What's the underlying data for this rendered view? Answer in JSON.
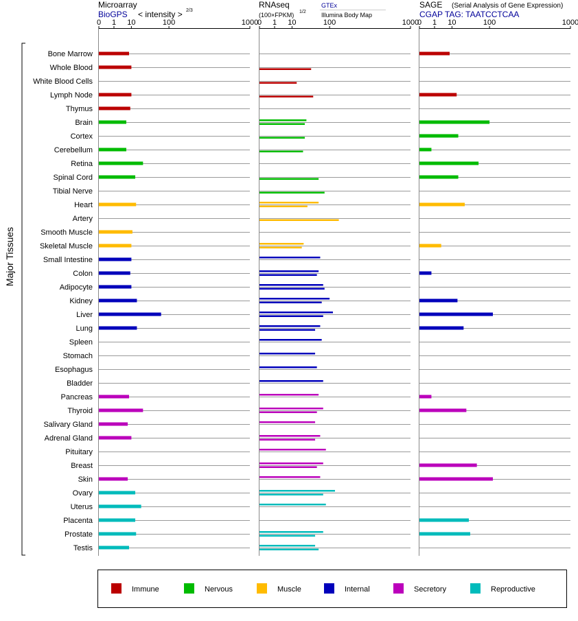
{
  "colors": {
    "Immune": "#bb0000",
    "Nervous": "#00bb00",
    "Muscle": "#ffbb00",
    "Internal": "#0000bb",
    "Secretory": "#bb00bb",
    "Reproductive": "#00bbbb"
  },
  "y_axis_title": "Major Tissues",
  "panels": {
    "microarray": {
      "title": "Microarray",
      "source": "BioGPS",
      "metric_prefix": "< intensity >",
      "metric_exponent": "2/3"
    },
    "rnaseq": {
      "title": "RNAseq",
      "unit_prefix": "(100×FPKM)",
      "unit_exponent": "1/2",
      "source1": "GTEx",
      "source2": "Illumina Body Map"
    },
    "sage": {
      "title": "SAGE",
      "subtitle": "(Serial Analysis of Gene Expression)",
      "tag": "CGAP TAG: TAATCCTCAA"
    }
  },
  "chart_data": {
    "type": "bar",
    "axis": {
      "scale": "power",
      "ticks": [
        "0",
        "1",
        "10",
        "100",
        "1000"
      ],
      "xlim": [
        0,
        1000
      ]
    },
    "legend": {
      "placement": "bottom",
      "entries": [
        "Immune",
        "Nervous",
        "Muscle",
        "Internal",
        "Secretory",
        "Reproductive"
      ]
    },
    "tissues": [
      {
        "name": "Bone Marrow",
        "system": "Immune",
        "microarray": 8,
        "rnaseq_gtex": null,
        "rnaseq_ibm": null,
        "sage": 8
      },
      {
        "name": "Whole Blood",
        "system": "Immune",
        "microarray": 10,
        "rnaseq_gtex": null,
        "rnaseq_ibm": 40,
        "sage": null
      },
      {
        "name": "White Blood Cells",
        "system": "Immune",
        "microarray": null,
        "rnaseq_gtex": null,
        "rnaseq_ibm": 15,
        "sage": null
      },
      {
        "name": "Lymph Node",
        "system": "Immune",
        "microarray": 10,
        "rnaseq_gtex": null,
        "rnaseq_ibm": 45,
        "sage": 15
      },
      {
        "name": "Thymus",
        "system": "Immune",
        "microarray": 9,
        "rnaseq_gtex": null,
        "rnaseq_ibm": null,
        "sage": null
      },
      {
        "name": "Brain",
        "system": "Nervous",
        "microarray": 6,
        "rnaseq_gtex": 30,
        "rnaseq_ibm": 27,
        "sage": 100
      },
      {
        "name": "Cortex",
        "system": "Nervous",
        "microarray": null,
        "rnaseq_gtex": null,
        "rnaseq_ibm": 27,
        "sage": 17
      },
      {
        "name": "Cerebellum",
        "system": "Nervous",
        "microarray": 6,
        "rnaseq_gtex": null,
        "rnaseq_ibm": 24,
        "sage": 0.5
      },
      {
        "name": "Retina",
        "system": "Nervous",
        "microarray": 25,
        "rnaseq_gtex": null,
        "rnaseq_ibm": null,
        "sage": 60
      },
      {
        "name": "Spinal Cord",
        "system": "Nervous",
        "microarray": 14,
        "rnaseq_gtex": null,
        "rnaseq_ibm": 60,
        "sage": 17
      },
      {
        "name": "Tibial Nerve",
        "system": "Nervous",
        "microarray": null,
        "rnaseq_gtex": null,
        "rnaseq_ibm": 80,
        "sage": null
      },
      {
        "name": "Heart",
        "system": "Muscle",
        "microarray": 15,
        "rnaseq_gtex": 60,
        "rnaseq_ibm": 32,
        "sage": 27
      },
      {
        "name": "Artery",
        "system": "Muscle",
        "microarray": null,
        "rnaseq_gtex": null,
        "rnaseq_ibm": 145,
        "sage": null
      },
      {
        "name": "Smooth Muscle",
        "system": "Muscle",
        "microarray": 11,
        "rnaseq_gtex": null,
        "rnaseq_ibm": null,
        "sage": null
      },
      {
        "name": "Skeletal Muscle",
        "system": "Muscle",
        "microarray": 10,
        "rnaseq_gtex": 25,
        "rnaseq_ibm": 22,
        "sage": 3
      },
      {
        "name": "Small Intestine",
        "system": "Internal",
        "microarray": 10,
        "rnaseq_gtex": 65,
        "rnaseq_ibm": null,
        "sage": null
      },
      {
        "name": "Colon",
        "system": "Internal",
        "microarray": 9,
        "rnaseq_gtex": 60,
        "rnaseq_ibm": 55,
        "sage": 0.5
      },
      {
        "name": "Adipocyte",
        "system": "Internal",
        "microarray": 10,
        "rnaseq_gtex": 75,
        "rnaseq_ibm": 80,
        "sage": null
      },
      {
        "name": "Kidney",
        "system": "Internal",
        "microarray": 16,
        "rnaseq_gtex": 100,
        "rnaseq_ibm": 70,
        "sage": 16
      },
      {
        "name": "Liver",
        "system": "Internal",
        "microarray": 70,
        "rnaseq_gtex": 115,
        "rnaseq_ibm": 75,
        "sage": 115
      },
      {
        "name": "Lung",
        "system": "Internal",
        "microarray": 16,
        "rnaseq_gtex": 65,
        "rnaseq_ibm": 50,
        "sage": 25
      },
      {
        "name": "Spleen",
        "system": "Internal",
        "microarray": null,
        "rnaseq_gtex": 70,
        "rnaseq_ibm": null,
        "sage": null
      },
      {
        "name": "Stomach",
        "system": "Internal",
        "microarray": null,
        "rnaseq_gtex": 50,
        "rnaseq_ibm": null,
        "sage": null
      },
      {
        "name": "Esophagus",
        "system": "Internal",
        "microarray": null,
        "rnaseq_gtex": 55,
        "rnaseq_ibm": null,
        "sage": null
      },
      {
        "name": "Bladder",
        "system": "Internal",
        "microarray": null,
        "rnaseq_gtex": 75,
        "rnaseq_ibm": null,
        "sage": null
      },
      {
        "name": "Pancreas",
        "system": "Secretory",
        "microarray": 8,
        "rnaseq_gtex": 60,
        "rnaseq_ibm": null,
        "sage": 0.5
      },
      {
        "name": "Thyroid",
        "system": "Secretory",
        "microarray": 25,
        "rnaseq_gtex": 75,
        "rnaseq_ibm": 55,
        "sage": 30
      },
      {
        "name": "Salivary Gland",
        "system": "Secretory",
        "microarray": 7,
        "rnaseq_gtex": 50,
        "rnaseq_ibm": null,
        "sage": null
      },
      {
        "name": "Adrenal Gland",
        "system": "Secretory",
        "microarray": 10,
        "rnaseq_gtex": 65,
        "rnaseq_ibm": 50,
        "sage": null
      },
      {
        "name": "Pituitary",
        "system": "Secretory",
        "microarray": null,
        "rnaseq_gtex": 85,
        "rnaseq_ibm": null,
        "sage": null
      },
      {
        "name": "Breast",
        "system": "Secretory",
        "microarray": null,
        "rnaseq_gtex": 75,
        "rnaseq_ibm": 55,
        "sage": 55
      },
      {
        "name": "Skin",
        "system": "Secretory",
        "microarray": 7,
        "rnaseq_gtex": 65,
        "rnaseq_ibm": null,
        "sage": 115
      },
      {
        "name": "Ovary",
        "system": "Reproductive",
        "microarray": 14,
        "rnaseq_gtex": 125,
        "rnaseq_ibm": 75,
        "sage": null
      },
      {
        "name": "Uterus",
        "system": "Reproductive",
        "microarray": 22,
        "rnaseq_gtex": 85,
        "rnaseq_ibm": null,
        "sage": null
      },
      {
        "name": "Placenta",
        "system": "Reproductive",
        "microarray": 14,
        "rnaseq_gtex": null,
        "rnaseq_ibm": null,
        "sage": 35
      },
      {
        "name": "Prostate",
        "system": "Reproductive",
        "microarray": 15,
        "rnaseq_gtex": 75,
        "rnaseq_ibm": 50,
        "sage": 38
      },
      {
        "name": "Testis",
        "system": "Reproductive",
        "microarray": 8,
        "rnaseq_gtex": 50,
        "rnaseq_ibm": 60,
        "sage": null
      }
    ]
  }
}
